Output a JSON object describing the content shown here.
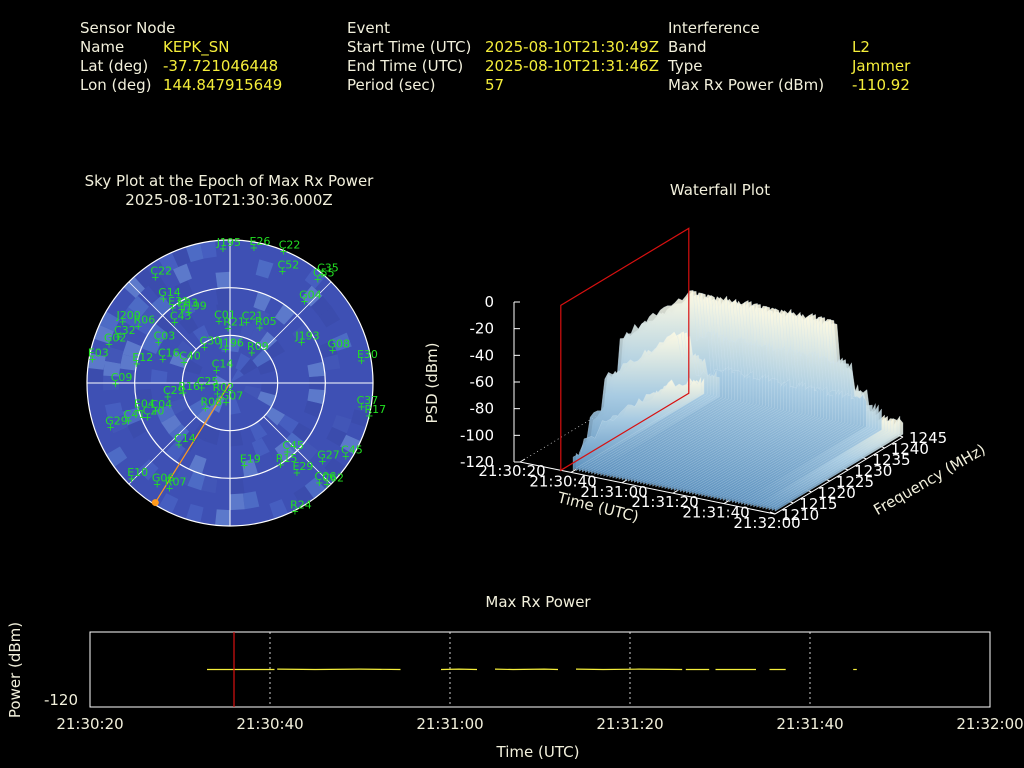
{
  "header": {
    "sensor": {
      "heading": "Sensor Node",
      "rows": [
        {
          "label": "Name",
          "value": "KEPK_SN"
        },
        {
          "label": "Lat (deg)",
          "value": "-37.721046448"
        },
        {
          "label": "Lon (deg)",
          "value": "144.847915649"
        }
      ]
    },
    "event": {
      "heading": "Event",
      "rows": [
        {
          "label": "Start Time (UTC)",
          "value": "2025-08-10T21:30:49Z"
        },
        {
          "label": "End Time (UTC)",
          "value": "2025-08-10T21:31:46Z"
        },
        {
          "label": "Period (sec)",
          "value": "57"
        }
      ]
    },
    "interference": {
      "heading": "Interference",
      "rows": [
        {
          "label": "Band",
          "value": "L2"
        },
        {
          "label": "Type",
          "value": "Jammer"
        },
        {
          "label": "Max Rx Power (dBm)",
          "value": "-110.92"
        }
      ]
    }
  },
  "chart_data": [
    {
      "type": "scatter",
      "title": "Sky Plot at the Epoch of Max Rx Power",
      "subtitle": "2025-08-10T21:30:36.000Z",
      "colors": {
        "disk": "#3e50b4",
        "rings": "#ffffff",
        "sats": "#22e022",
        "bearing": "#ff9a1c"
      },
      "bearing_azimuth_deg": 212,
      "satellites": [
        {
          "id": "J195",
          "az": 357,
          "el": 85
        },
        {
          "id": "E26",
          "az": 10,
          "el": 87
        },
        {
          "id": "C22",
          "az": 22,
          "el": 90
        },
        {
          "id": "C52",
          "az": 25,
          "el": 78
        },
        {
          "id": "C35",
          "az": 40,
          "el": 90
        },
        {
          "id": "C55",
          "az": 40,
          "el": 86
        },
        {
          "id": "G04",
          "az": 42,
          "el": 70
        },
        {
          "id": "C22",
          "az": 325,
          "el": 82
        },
        {
          "id": "G14",
          "az": 322,
          "el": 68
        },
        {
          "id": "E31",
          "az": 323,
          "el": 60
        },
        {
          "id": "E33",
          "az": 327,
          "el": 56
        },
        {
          "id": "J199",
          "az": 330,
          "el": 52
        },
        {
          "id": "C01",
          "az": 350,
          "el": 40
        },
        {
          "id": "C21",
          "az": 15,
          "el": 40
        },
        {
          "id": "R05",
          "az": 28,
          "el": 40
        },
        {
          "id": "R21",
          "az": 358,
          "el": 35
        },
        {
          "id": "J196",
          "az": 353,
          "el": 22
        },
        {
          "id": "C43",
          "az": 318,
          "el": 52
        },
        {
          "id": "J200",
          "az": 300,
          "el": 78
        },
        {
          "id": "R06",
          "az": 302,
          "el": 68
        },
        {
          "id": "C32",
          "az": 293,
          "el": 76
        },
        {
          "id": "G02",
          "az": 288,
          "el": 80
        },
        {
          "id": "C03",
          "az": 300,
          "el": 52
        },
        {
          "id": "C30",
          "az": 325,
          "el": 28
        },
        {
          "id": "E12",
          "az": 282,
          "el": 60
        },
        {
          "id": "E03",
          "az": 280,
          "el": 88
        },
        {
          "id": "C16",
          "az": 290,
          "el": 45
        },
        {
          "id": "C40",
          "az": 295,
          "el": 32
        },
        {
          "id": "C14",
          "az": 315,
          "el": 12
        },
        {
          "id": "C09",
          "az": 270,
          "el": 72
        },
        {
          "id": "R09",
          "az": 35,
          "el": 24
        },
        {
          "id": "J193",
          "az": 60,
          "el": 52
        },
        {
          "id": "G08",
          "az": 72,
          "el": 68
        },
        {
          "id": "E30",
          "az": 80,
          "el": 84
        },
        {
          "id": "C37",
          "az": 100,
          "el": 84
        },
        {
          "id": "R17",
          "az": 103,
          "el": 90
        },
        {
          "id": "C29",
          "az": 258,
          "el": 40
        },
        {
          "id": "R16",
          "az": 259,
          "el": 30
        },
        {
          "id": "C25",
          "az": 262,
          "el": 18
        },
        {
          "id": "E04",
          "az": 254,
          "el": 60
        },
        {
          "id": "C20",
          "az": 248,
          "el": 56
        },
        {
          "id": "C04",
          "az": 250,
          "el": 50
        },
        {
          "id": "R02",
          "az": 232,
          "el": 10
        },
        {
          "id": "G07",
          "az": 192,
          "el": 12
        },
        {
          "id": "R08",
          "az": 225,
          "el": 22
        },
        {
          "id": "C41",
          "az": 250,
          "el": 68
        },
        {
          "id": "G29",
          "az": 250,
          "el": 80
        },
        {
          "id": "C14",
          "az": 220,
          "el": 50
        },
        {
          "id": "C45",
          "az": 140,
          "el": 56
        },
        {
          "id": "G27",
          "az": 130,
          "el": 76
        },
        {
          "id": "C45",
          "az": 122,
          "el": 86
        },
        {
          "id": "R15",
          "az": 148,
          "el": 60
        },
        {
          "id": "E29",
          "az": 143,
          "el": 70
        },
        {
          "id": "C06",
          "az": 138,
          "el": 84
        },
        {
          "id": "C62",
          "az": 136,
          "el": 88
        },
        {
          "id": "E19",
          "az": 170,
          "el": 52
        },
        {
          "id": "R24",
          "az": 153,
          "el": 90
        },
        {
          "id": "E10",
          "az": 226,
          "el": 86
        },
        {
          "id": "G06",
          "az": 216,
          "el": 78
        },
        {
          "id": "R07",
          "az": 210,
          "el": 76
        }
      ]
    },
    {
      "type": "surface",
      "title": "Waterfall Plot",
      "xlabel": "Time (UTC)",
      "ylabel": "Frequency (MHz)",
      "zlabel": "PSD (dBm)",
      "x_ticks": [
        "21:30:20",
        "21:30:40",
        "21:31:00",
        "21:31:20",
        "21:31:40",
        "21:32:00"
      ],
      "y_ticks": [
        1210,
        1215,
        1220,
        1225,
        1230,
        1235,
        1240,
        1245
      ],
      "z_ticks": [
        0,
        -20,
        -40,
        -60,
        -80,
        -100,
        -120
      ],
      "xlim": [
        "21:30:20",
        "21:32:00"
      ],
      "ylim": [
        1210,
        1245
      ],
      "zlim": [
        -120,
        0
      ],
      "marker_time": "21:30:36",
      "marker_color": "#d81010",
      "surface_colors": [
        "#8fb8d8",
        "#fffbe6"
      ]
    },
    {
      "type": "line",
      "title": "Max Rx Power",
      "xlabel": "Time (UTC)",
      "ylabel": "Power (dBm)",
      "x_ticks": [
        "21:30:20",
        "21:30:40",
        "21:31:00",
        "21:31:20",
        "21:31:40",
        "21:32:00"
      ],
      "y_ticks": [
        -120
      ],
      "xlim": [
        0,
        100
      ],
      "ylim": [
        -122,
        -100
      ],
      "x_units": "seconds after 21:30:20",
      "marker_time_sec": 16,
      "line_color": "#f5ee3a",
      "marker_color": "#d81010",
      "series": [
        {
          "x": [
            13,
            14,
            17.8,
            20.5
          ],
          "y": [
            -111,
            -111,
            -111,
            -111
          ]
        },
        {
          "x": [
            20.8,
            25,
            30,
            34.5
          ],
          "y": [
            -110.9,
            -111,
            -110.9,
            -111
          ]
        },
        {
          "x": [
            39,
            41,
            43
          ],
          "y": [
            -111,
            -110.9,
            -111
          ]
        },
        {
          "x": [
            45,
            47,
            50.5,
            52
          ],
          "y": [
            -110.9,
            -111,
            -110.9,
            -111
          ]
        },
        {
          "x": [
            54,
            57,
            61,
            65.8
          ],
          "y": [
            -110.9,
            -111,
            -110.9,
            -111
          ]
        },
        {
          "x": [
            66.2,
            67.3,
            68.8
          ],
          "y": [
            -111,
            -111,
            -111
          ]
        },
        {
          "x": [
            69.5,
            71.5,
            74
          ],
          "y": [
            -111,
            -111,
            -111
          ]
        },
        {
          "x": [
            75.5,
            77.3
          ],
          "y": [
            -111,
            -111
          ]
        },
        {
          "x": [
            84.8,
            85.2
          ],
          "y": [
            -111,
            -111
          ]
        }
      ]
    }
  ]
}
